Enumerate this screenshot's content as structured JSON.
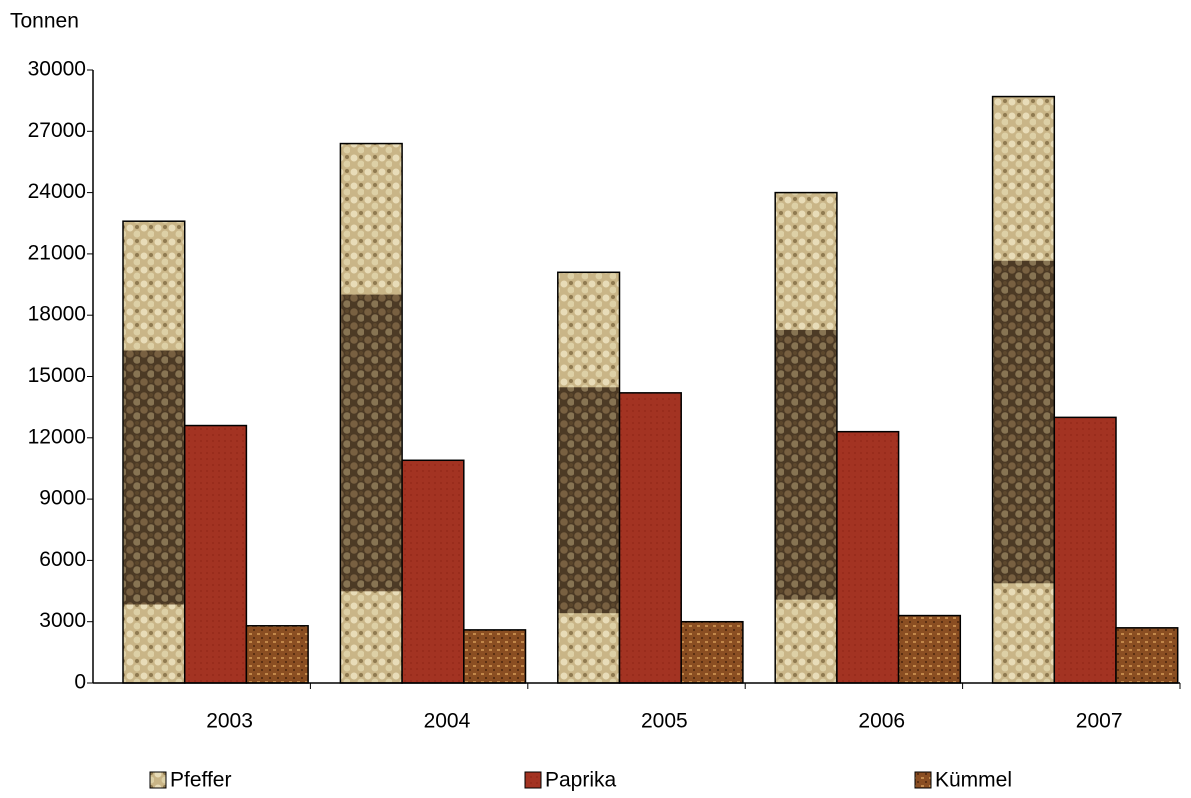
{
  "chart_data": {
    "type": "bar",
    "y_label": "Tonnen",
    "categories": [
      "2003",
      "2004",
      "2005",
      "2006",
      "2007"
    ],
    "series": [
      {
        "name": "Pfeffer",
        "color": "#b49a6a",
        "values": [
          22600,
          26400,
          20100,
          24000,
          28700
        ]
      },
      {
        "name": "Paprika",
        "color": "#a33322",
        "values": [
          12600,
          10900,
          14200,
          12300,
          13000
        ]
      },
      {
        "name": "Kümmel",
        "color": "#9a5a2a",
        "values": [
          2800,
          2600,
          3000,
          3300,
          2700
        ]
      }
    ],
    "ylim": [
      0,
      30000
    ],
    "yticks": [
      0,
      3000,
      6000,
      9000,
      12000,
      15000,
      18000,
      21000,
      24000,
      27000,
      30000
    ],
    "grid": false,
    "legend": "bottom"
  }
}
